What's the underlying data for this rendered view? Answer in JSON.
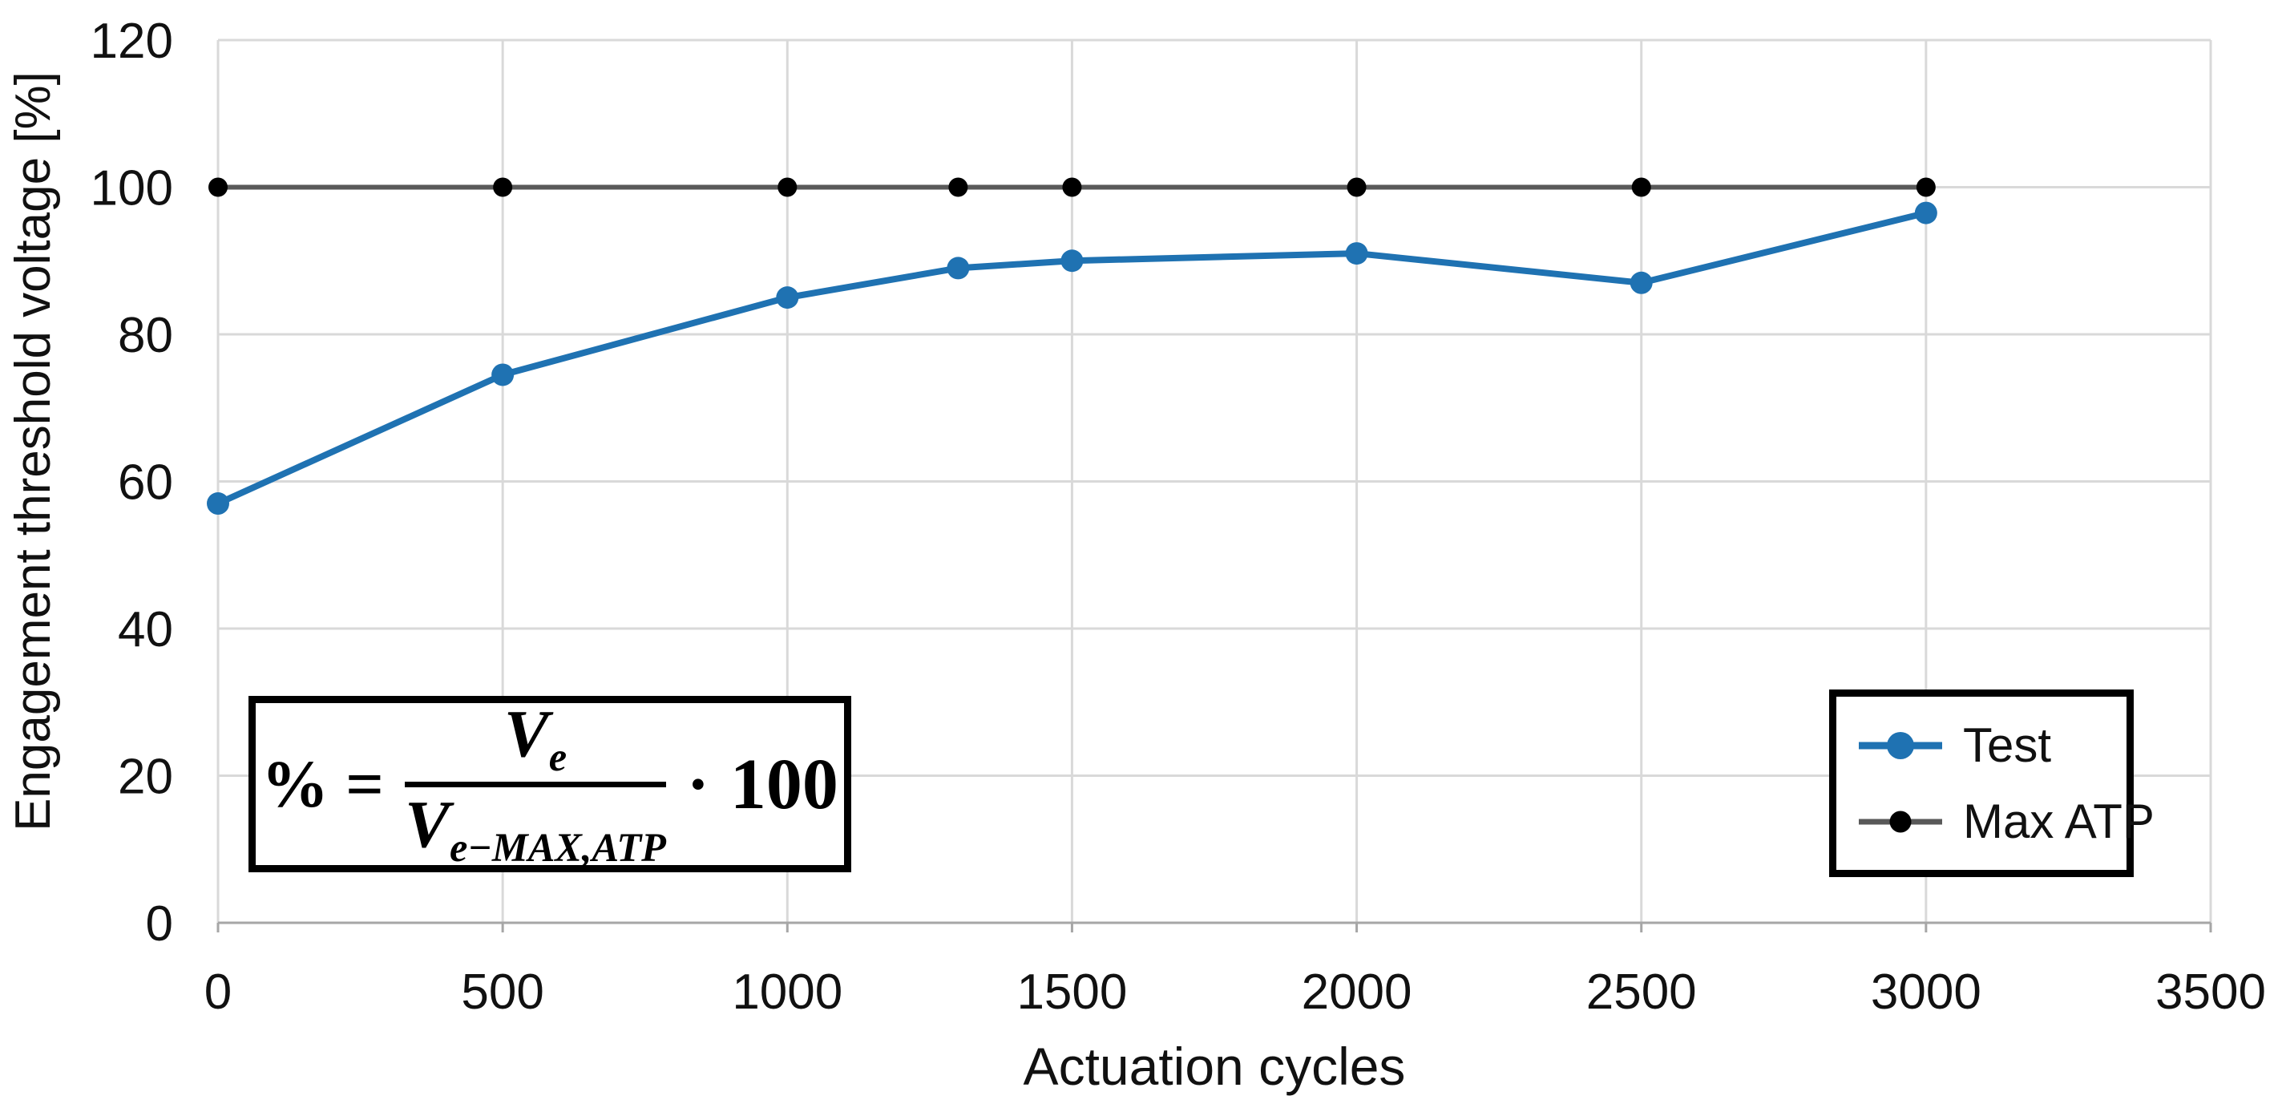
{
  "chart_data": {
    "type": "line",
    "x": [
      0,
      500,
      1000,
      1300,
      1500,
      2000,
      2500,
      3000
    ],
    "series": [
      {
        "name": "Test",
        "color": "#1F72B2",
        "marker_color": "#1F72B2",
        "values": [
          57,
          74.5,
          85,
          89,
          90,
          91,
          87,
          96.5
        ],
        "line_width": 8,
        "marker_radius": 14
      },
      {
        "name": "Max ATP",
        "color": "#595959",
        "marker_color": "#000000",
        "values": [
          100,
          100,
          100,
          100,
          100,
          100,
          100,
          100
        ],
        "line_width": 6,
        "marker_radius": 12
      }
    ],
    "title": "",
    "xlabel": "Actuation cycles",
    "ylabel": "Engagement threshold voltage  [%]",
    "xlim": [
      0,
      3500
    ],
    "ylim": [
      0,
      120
    ],
    "xticks": [
      0,
      500,
      1000,
      1500,
      2000,
      2500,
      3000,
      3500
    ],
    "yticks": [
      0,
      20,
      40,
      60,
      80,
      100,
      120
    ],
    "grid": true,
    "gridline_color": "#D9D9D9",
    "axis_line_color": "#A6A6A6",
    "tick_text_color": "#111111",
    "legend_position": "inside-bottom-right"
  },
  "formula": {
    "lhs": "% =",
    "numerator_base": "V",
    "numerator_sub": "e",
    "denominator_base": "V",
    "denominator_sub": "e−MAX,ATP",
    "times": "·",
    "factor": "100"
  }
}
